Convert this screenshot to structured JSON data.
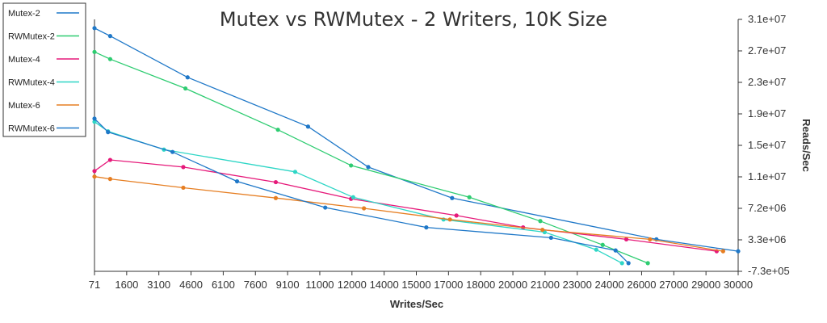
{
  "chart_data": {
    "type": "line",
    "title": "Mutex vs RWMutex - 2 Writers, 10K Size",
    "xlabel": "Writes/Sec",
    "ylabel": "Reads/Sec",
    "x_ticks": [
      "71",
      "1600",
      "3100",
      "4600",
      "6100",
      "7600",
      "9100",
      "11000",
      "12000",
      "14000",
      "15000",
      "17000",
      "18000",
      "20000",
      "21000",
      "23000",
      "24000",
      "26000",
      "27000",
      "29000",
      "30000"
    ],
    "y_ticks": [
      "3.1e+07",
      "2.7e+07",
      "2.3e+07",
      "1.9e+07",
      "1.5e+07",
      "1.1e+07",
      "7.2e+06",
      "3.3e+06",
      "-7.3e+05"
    ],
    "xlim": [
      71,
      30000
    ],
    "ylim": [
      -730000,
      31000000
    ],
    "grid": false,
    "legend_position": "top-left",
    "series": [
      {
        "name": "Mutex-2",
        "color": "#1f78c8",
        "points": [
          [
            71,
            29900000
          ],
          [
            800,
            28900000
          ],
          [
            4400,
            23700000
          ],
          [
            10000,
            17500000
          ],
          [
            12800,
            12400000
          ],
          [
            16700,
            8500000
          ],
          [
            26200,
            3300000
          ],
          [
            30000,
            1800000
          ]
        ]
      },
      {
        "name": "RWMutex-2",
        "color": "#2ecc71",
        "points": [
          [
            71,
            26900000
          ],
          [
            800,
            26000000
          ],
          [
            4300,
            22300000
          ],
          [
            8600,
            17100000
          ],
          [
            12000,
            12600000
          ],
          [
            17500,
            8600000
          ],
          [
            20800,
            5600000
          ],
          [
            23700,
            2600000
          ],
          [
            25800,
            300000
          ]
        ]
      },
      {
        "name": "Mutex-4",
        "color": "#e6197a",
        "points": [
          [
            71,
            11900000
          ],
          [
            800,
            13300000
          ],
          [
            4200,
            12400000
          ],
          [
            8500,
            10500000
          ],
          [
            12000,
            8400000
          ],
          [
            16900,
            6300000
          ],
          [
            20000,
            4800000
          ],
          [
            24800,
            3300000
          ],
          [
            29000,
            1800000
          ]
        ]
      },
      {
        "name": "RWMutex-4",
        "color": "#2ed6c6",
        "points": [
          [
            71,
            18100000
          ],
          [
            700,
            16900000
          ],
          [
            3300,
            14600000
          ],
          [
            9400,
            11800000
          ],
          [
            12100,
            8600000
          ],
          [
            16300,
            5800000
          ],
          [
            21000,
            4200000
          ],
          [
            23400,
            2000000
          ],
          [
            24600,
            300000
          ]
        ]
      },
      {
        "name": "Mutex-6",
        "color": "#e67e22",
        "points": [
          [
            71,
            11200000
          ],
          [
            800,
            10900000
          ],
          [
            4200,
            9800000
          ],
          [
            8500,
            8500000
          ],
          [
            12600,
            7200000
          ],
          [
            16600,
            5800000
          ],
          [
            20900,
            4500000
          ],
          [
            25900,
            3300000
          ],
          [
            29300,
            1800000
          ]
        ]
      },
      {
        "name": "RWMutex-6",
        "color": "#1f78c8",
        "points": [
          [
            71,
            18500000
          ],
          [
            700,
            16800000
          ],
          [
            3700,
            14300000
          ],
          [
            6700,
            10600000
          ],
          [
            10800,
            7300000
          ],
          [
            15500,
            4800000
          ],
          [
            21300,
            3500000
          ],
          [
            24300,
            1900000
          ],
          [
            24900,
            300000
          ]
        ]
      }
    ]
  }
}
